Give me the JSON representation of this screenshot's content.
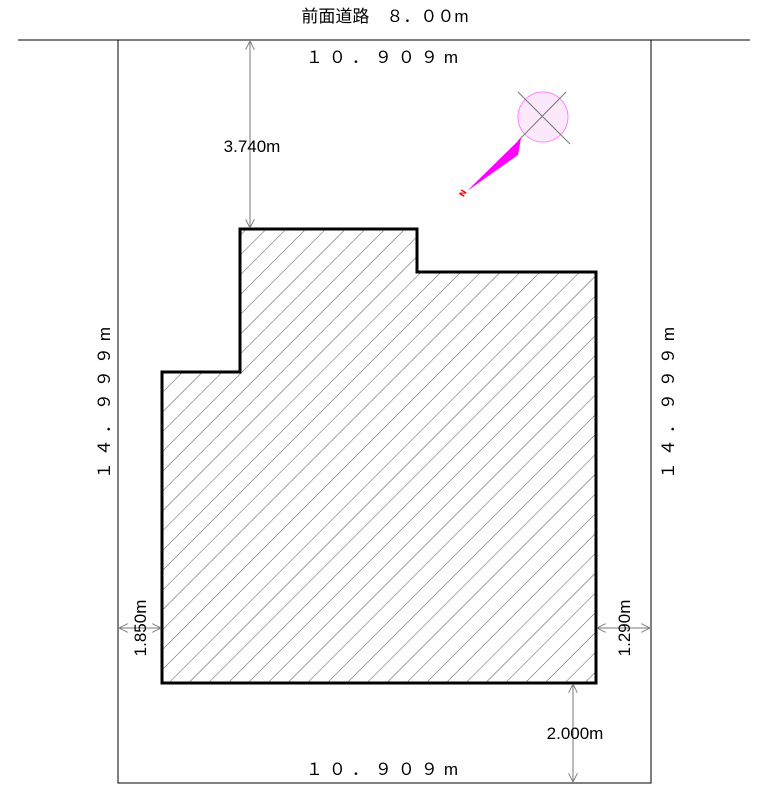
{
  "title": "前面道路　８．００m",
  "site": {
    "top_width": "１０．９０９m",
    "bottom_width": "１０．９０９m",
    "left_depth": "１４．９９９m",
    "right_depth": "１４．９９９m"
  },
  "setbacks": {
    "front": "3.740m",
    "rear": "2.000m",
    "left": "1.850m",
    "right": "1.290m"
  },
  "north_arrow": {
    "label": "N",
    "arrow_color": "#ff00ff",
    "label_color": "#ff0000",
    "circle_color": "#ff80ff"
  },
  "colors": {
    "line": "#000000",
    "hatch": "#555555",
    "dimension": "#888888"
  }
}
